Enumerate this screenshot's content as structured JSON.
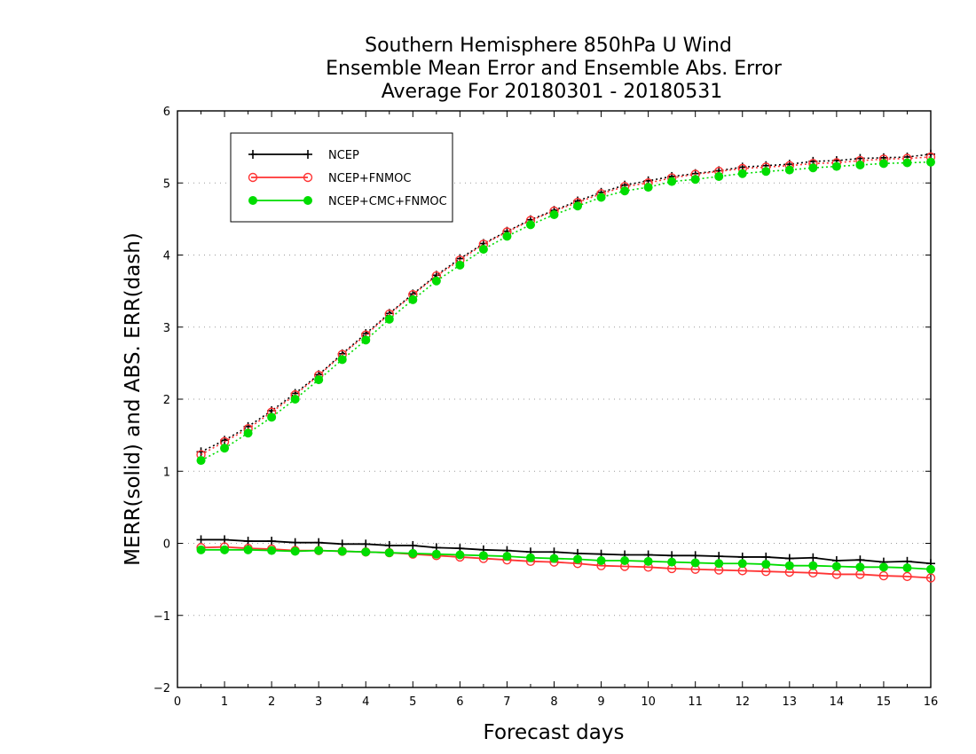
{
  "chart_data": {
    "type": "line",
    "title_lines": [
      "Southern Hemisphere 850hPa U Wind",
      "Ensemble Mean Error and Ensemble Abs. Error",
      "Average For 20180301 - 20180531"
    ],
    "xlabel": "Forecast days",
    "ylabel": "MERR(solid) and ABS. ERR(dash)",
    "xlim": [
      0,
      16
    ],
    "ylim": [
      -2,
      6
    ],
    "x_ticks": [
      "0",
      "1",
      "2",
      "3",
      "4",
      "5",
      "6",
      "7",
      "8",
      "9",
      "10",
      "11",
      "12",
      "13",
      "14",
      "15",
      "16"
    ],
    "y_ticks": [
      "−2",
      "−1",
      "0",
      "1",
      "2",
      "3",
      "4",
      "5",
      "6"
    ],
    "grid": "horizontal dotted",
    "legend_position": "top-left",
    "x": [
      0.5,
      1,
      1.5,
      2,
      2.5,
      3,
      3.5,
      4,
      4.5,
      5,
      5.5,
      6,
      6.5,
      7,
      7.5,
      8,
      8.5,
      9,
      9.5,
      10,
      10.5,
      11,
      11.5,
      12,
      12.5,
      13,
      13.5,
      14,
      14.5,
      15,
      15.5,
      16
    ],
    "series": [
      {
        "name": "NCEP",
        "color": "#000000",
        "marker": "plus",
        "merr": [
          0.05,
          0.05,
          0.03,
          0.03,
          0.01,
          0.01,
          -0.01,
          -0.01,
          -0.03,
          -0.03,
          -0.06,
          -0.07,
          -0.09,
          -0.1,
          -0.12,
          -0.12,
          -0.14,
          -0.15,
          -0.16,
          -0.16,
          -0.17,
          -0.17,
          -0.18,
          -0.19,
          -0.19,
          -0.21,
          -0.2,
          -0.24,
          -0.23,
          -0.26,
          -0.25,
          -0.28
        ],
        "abs_err": [
          1.27,
          1.43,
          1.62,
          1.84,
          2.08,
          2.34,
          2.63,
          2.91,
          3.19,
          3.46,
          3.72,
          3.95,
          4.16,
          4.33,
          4.49,
          4.62,
          4.75,
          4.87,
          4.97,
          5.03,
          5.09,
          5.13,
          5.17,
          5.22,
          5.24,
          5.26,
          5.3,
          5.31,
          5.34,
          5.35,
          5.36,
          5.4
        ]
      },
      {
        "name": "NCEP+FNMOC",
        "color": "#ff3333",
        "marker": "open-circle",
        "merr": [
          -0.06,
          -0.05,
          -0.07,
          -0.08,
          -0.1,
          -0.1,
          -0.11,
          -0.12,
          -0.13,
          -0.15,
          -0.17,
          -0.19,
          -0.21,
          -0.23,
          -0.25,
          -0.26,
          -0.28,
          -0.31,
          -0.32,
          -0.33,
          -0.35,
          -0.36,
          -0.37,
          -0.38,
          -0.39,
          -0.4,
          -0.41,
          -0.43,
          -0.43,
          -0.45,
          -0.46,
          -0.48
        ],
        "abs_err": [
          1.23,
          1.41,
          1.59,
          1.82,
          2.06,
          2.33,
          2.62,
          2.89,
          3.18,
          3.45,
          3.71,
          3.93,
          4.15,
          4.32,
          4.48,
          4.61,
          4.73,
          4.85,
          4.95,
          5.0,
          5.07,
          5.12,
          5.16,
          5.2,
          5.22,
          5.24,
          5.27,
          5.28,
          5.31,
          5.33,
          5.34,
          5.36
        ]
      },
      {
        "name": "NCEP+CMC+FNMOC",
        "color": "#00dd00",
        "marker": "filled-circle",
        "merr": [
          -0.09,
          -0.09,
          -0.09,
          -0.1,
          -0.11,
          -0.1,
          -0.11,
          -0.12,
          -0.13,
          -0.14,
          -0.15,
          -0.16,
          -0.17,
          -0.18,
          -0.2,
          -0.21,
          -0.22,
          -0.24,
          -0.24,
          -0.25,
          -0.26,
          -0.27,
          -0.28,
          -0.28,
          -0.29,
          -0.31,
          -0.31,
          -0.32,
          -0.33,
          -0.33,
          -0.34,
          -0.36
        ],
        "abs_err": [
          1.15,
          1.32,
          1.53,
          1.75,
          2.0,
          2.27,
          2.55,
          2.82,
          3.11,
          3.38,
          3.64,
          3.86,
          4.08,
          4.26,
          4.42,
          4.56,
          4.68,
          4.8,
          4.89,
          4.94,
          5.02,
          5.05,
          5.09,
          5.13,
          5.16,
          5.18,
          5.21,
          5.23,
          5.25,
          5.27,
          5.28,
          5.29
        ]
      }
    ]
  }
}
